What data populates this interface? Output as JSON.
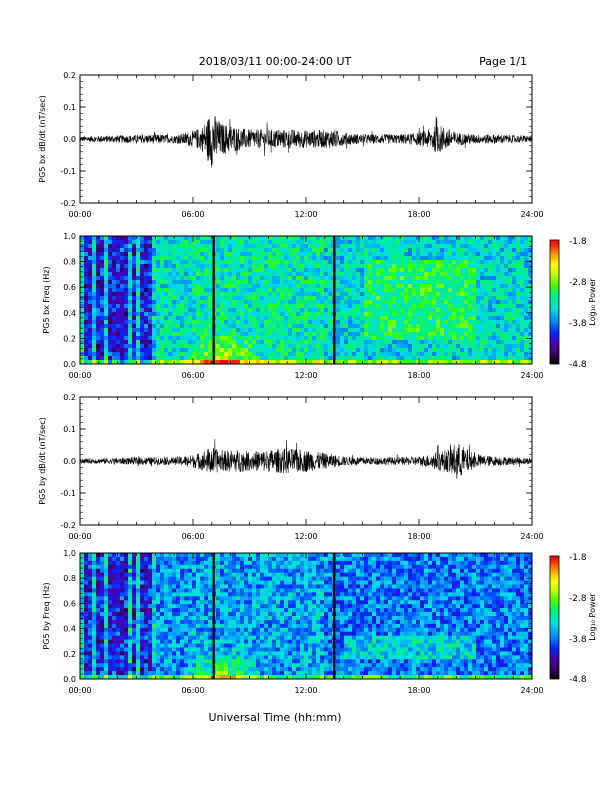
{
  "header": {
    "title": "2018/03/11   00:00-24:00 UT",
    "page": "Page 1/1"
  },
  "xlabel": "Universal Time (hh:mm)",
  "colorbar": {
    "label": "Log₁₀ Power",
    "ticks": [
      "-1.8",
      "-2.8",
      "-3.8",
      "-4.8"
    ],
    "range": [
      -4.8,
      -1.8
    ],
    "colors": [
      "#000000",
      "#3a0060",
      "#4a00b0",
      "#0028ff",
      "#0090ff",
      "#00e0e0",
      "#00f080",
      "#40ff00",
      "#c0ff00",
      "#ffff00",
      "#ffa000",
      "#ff3000",
      "#ff0000"
    ]
  },
  "chart_data": [
    {
      "type": "line",
      "ylabel": "PG5 bx dB/dt (nT/sec)",
      "xlim_hours": [
        0,
        24
      ],
      "ylim": [
        -0.2,
        0.2
      ],
      "xticks": [
        "00:00",
        "06:00",
        "12:00",
        "18:00",
        "24:00"
      ],
      "yticks": [
        "0.2",
        "0.1",
        "0.0",
        "-0.1",
        "-0.2"
      ],
      "series": [
        {
          "hours": [
            0,
            1,
            2,
            3,
            4,
            5,
            6,
            6.5,
            7,
            7.5,
            8,
            8.5,
            9,
            10,
            11,
            12,
            13,
            13.5,
            14,
            15,
            16,
            17,
            18,
            18.5,
            19,
            19.5,
            20,
            21,
            22,
            23,
            24
          ],
          "amplitude": [
            0.008,
            0.01,
            0.012,
            0.012,
            0.015,
            0.012,
            0.025,
            0.04,
            0.09,
            0.05,
            0.045,
            0.035,
            0.03,
            0.03,
            0.03,
            0.028,
            0.028,
            0.03,
            0.02,
            0.015,
            0.015,
            0.015,
            0.02,
            0.03,
            0.045,
            0.035,
            0.02,
            0.015,
            0.015,
            0.012,
            0.01
          ]
        }
      ]
    },
    {
      "type": "heatmap",
      "ylabel": "PG5 bx Freq (Hz)",
      "xlim_hours": [
        0,
        24
      ],
      "ylim": [
        0.0,
        1.0
      ],
      "xticks": [
        "00:00",
        "06:00",
        "12:00",
        "18:00",
        "24:00"
      ],
      "yticks": [
        "1.0",
        "0.8",
        "0.6",
        "0.4",
        "0.2",
        "0.0"
      ],
      "gaps_hours": [
        7.1,
        13.5
      ]
    },
    {
      "type": "line",
      "ylabel": "PG5 by dB/dt (nT/sec)",
      "xlim_hours": [
        0,
        24
      ],
      "ylim": [
        -0.2,
        0.2
      ],
      "xticks": [
        "00:00",
        "06:00",
        "12:00",
        "18:00",
        "24:00"
      ],
      "yticks": [
        "0.2",
        "0.1",
        "0.0",
        "-0.1",
        "-0.2"
      ],
      "series": [
        {
          "hours": [
            0,
            1,
            2,
            3,
            4,
            5,
            6,
            6.5,
            7,
            7.5,
            8,
            8.5,
            9,
            10,
            11,
            12,
            13,
            13.5,
            14,
            15,
            16,
            17,
            18,
            18.5,
            19,
            19.5,
            20,
            21,
            22,
            23,
            24
          ],
          "amplitude": [
            0.008,
            0.008,
            0.01,
            0.012,
            0.012,
            0.012,
            0.02,
            0.03,
            0.045,
            0.03,
            0.035,
            0.035,
            0.03,
            0.035,
            0.04,
            0.035,
            0.025,
            0.02,
            0.015,
            0.012,
            0.012,
            0.012,
            0.015,
            0.02,
            0.03,
            0.035,
            0.06,
            0.02,
            0.015,
            0.012,
            0.01
          ]
        }
      ]
    },
    {
      "type": "heatmap",
      "ylabel": "PG5 by Freq (Hz)",
      "xlim_hours": [
        0,
        24
      ],
      "ylim": [
        0.0,
        1.0
      ],
      "xticks": [
        "00:00",
        "06:00",
        "12:00",
        "18:00",
        "24:00"
      ],
      "yticks": [
        "1.0",
        "0.8",
        "0.6",
        "0.4",
        "0.2",
        "0.0"
      ],
      "gaps_hours": [
        7.1,
        13.5
      ]
    }
  ]
}
